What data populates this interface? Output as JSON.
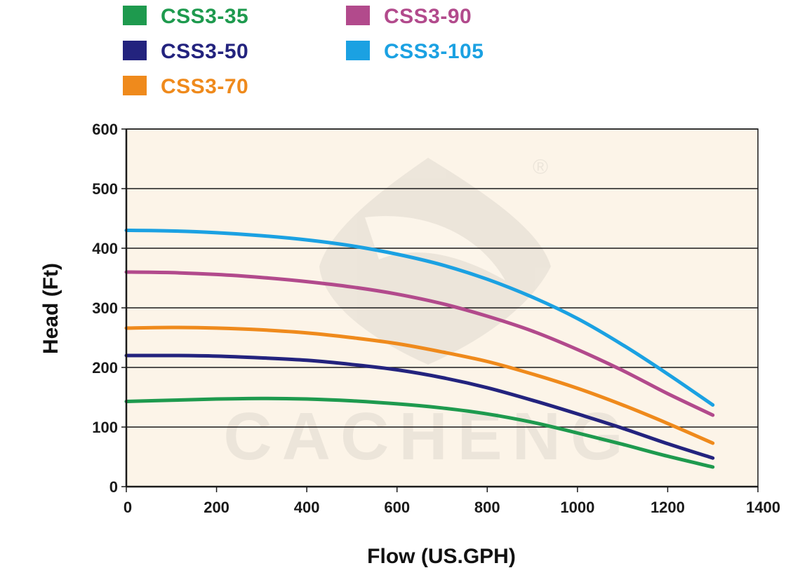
{
  "chart_data": {
    "type": "line",
    "title": "",
    "xlabel": "Flow (US.GPH)",
    "ylabel": "Head (Ft)",
    "xlim": [
      0,
      1400
    ],
    "ylim": [
      0,
      600
    ],
    "x_ticks": [
      "0",
      "200",
      "400",
      "600",
      "800",
      "1000",
      "1200",
      "1400"
    ],
    "y_ticks": [
      "0",
      "100",
      "200",
      "300",
      "400",
      "500",
      "600"
    ],
    "grid": "horizontal",
    "legend": "top",
    "plot_background": "#fcf4e8",
    "watermark": {
      "text": "CACHENG",
      "mark": "®"
    },
    "series": [
      {
        "name": "CSS3-35",
        "color": "#1e9a4e",
        "x": [
          0,
          100,
          200,
          300,
          400,
          500,
          600,
          700,
          800,
          900,
          1000,
          1100,
          1200,
          1300
        ],
        "y": [
          143,
          145,
          147,
          148,
          147,
          144,
          139,
          132,
          122,
          108,
          90,
          71,
          51,
          33
        ]
      },
      {
        "name": "CSS3-50",
        "color": "#23237e",
        "x": [
          0,
          100,
          200,
          300,
          400,
          500,
          600,
          700,
          800,
          900,
          1000,
          1100,
          1200,
          1300
        ],
        "y": [
          220,
          220,
          219,
          216,
          212,
          205,
          196,
          183,
          166,
          145,
          122,
          98,
          72,
          48
        ]
      },
      {
        "name": "CSS3-70",
        "color": "#ef8a1c",
        "x": [
          0,
          100,
          200,
          300,
          400,
          500,
          600,
          700,
          800,
          900,
          1000,
          1100,
          1200,
          1300
        ],
        "y": [
          266,
          267,
          266,
          263,
          258,
          250,
          240,
          226,
          210,
          189,
          165,
          137,
          106,
          73
        ]
      },
      {
        "name": "CSS3-90",
        "color": "#b24a8c",
        "x": [
          0,
          100,
          200,
          300,
          400,
          500,
          600,
          700,
          800,
          900,
          1000,
          1100,
          1200,
          1300
        ],
        "y": [
          360,
          359,
          356,
          351,
          344,
          335,
          323,
          307,
          286,
          261,
          230,
          195,
          156,
          120
        ]
      },
      {
        "name": "CSS3-105",
        "color": "#1ba1e2",
        "x": [
          0,
          100,
          200,
          300,
          400,
          500,
          600,
          700,
          800,
          900,
          1000,
          1100,
          1200,
          1300
        ],
        "y": [
          430,
          429,
          426,
          421,
          414,
          404,
          390,
          372,
          348,
          318,
          282,
          238,
          189,
          137
        ]
      }
    ]
  }
}
